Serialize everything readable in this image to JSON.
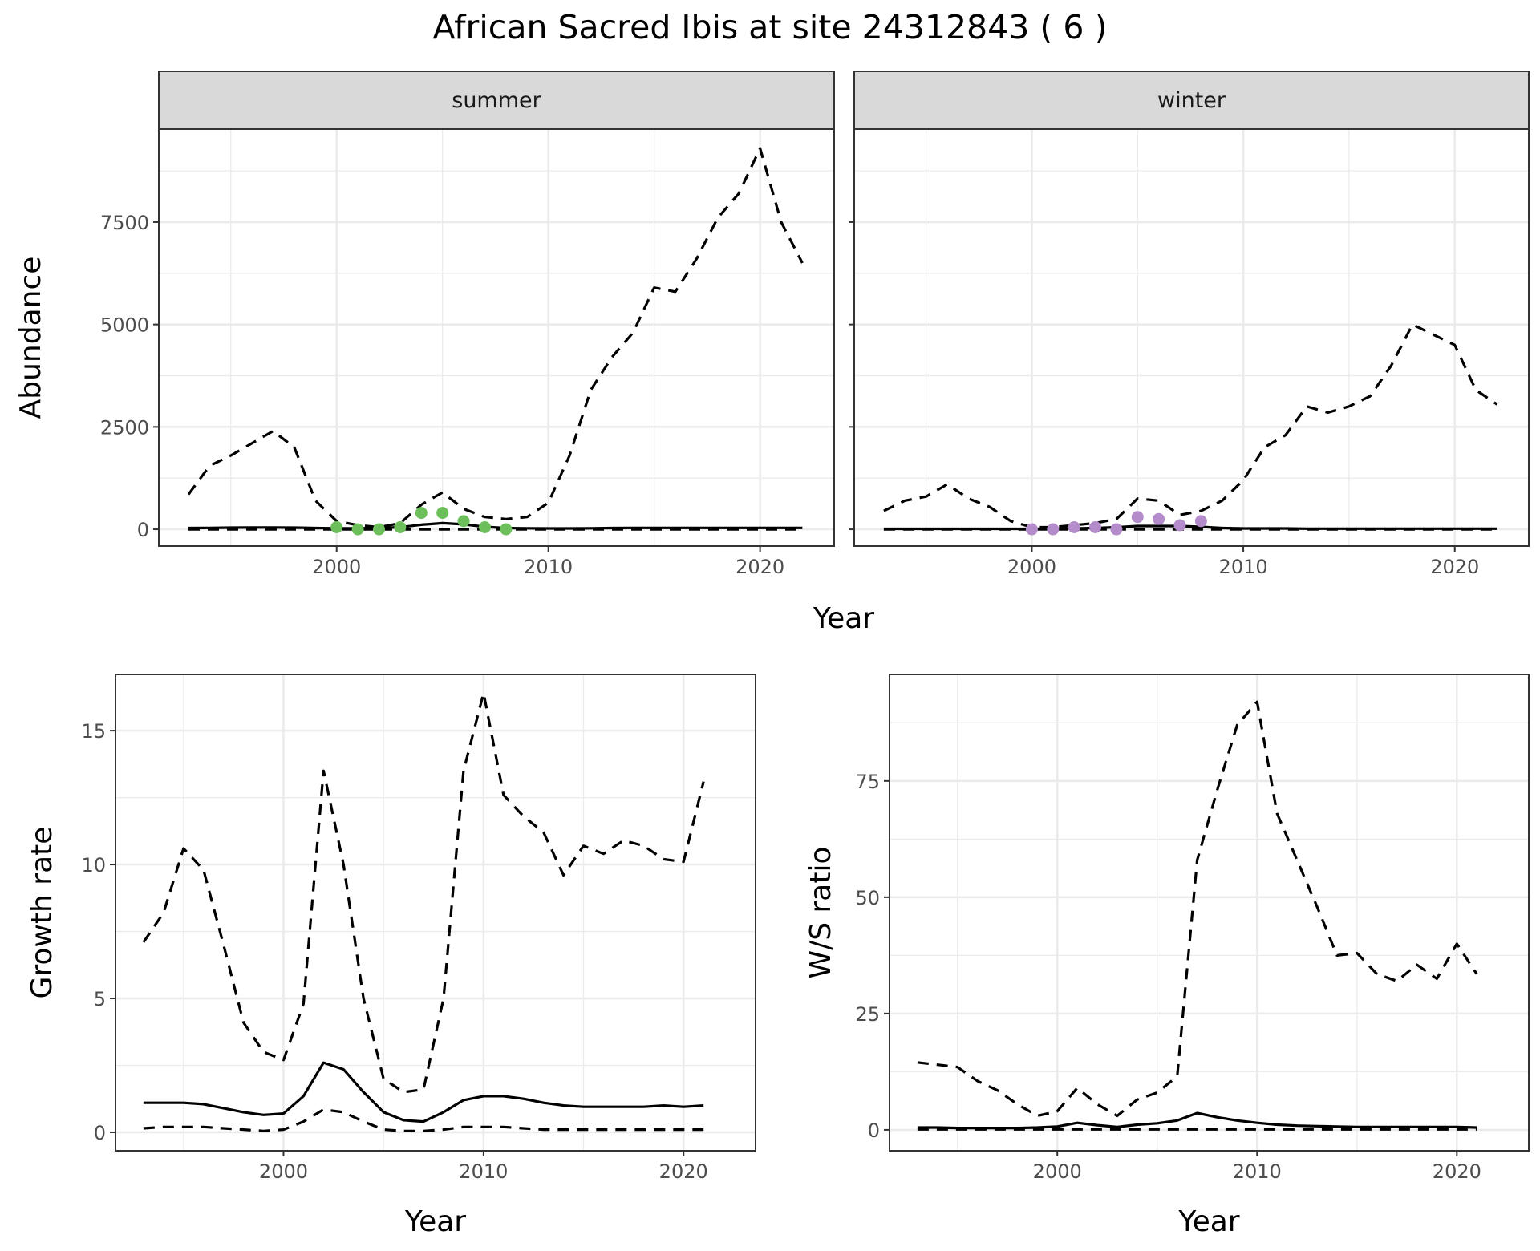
{
  "title": "African Sacred Ibis at site 24312843 ( 6 )",
  "colors": {
    "summer_points": "#6dbf5b",
    "winter_points": "#b48ccb",
    "strip_bg": "#d9d9d9",
    "grid": "#ebebeb",
    "line": "#000000"
  },
  "chart_data": [
    {
      "type": "line",
      "panel": "summer",
      "strip_label": "summer",
      "xlabel": "Year",
      "ylabel": "Abundance",
      "xlim": [
        1991.6,
        2023.5
      ],
      "ylim": [
        -410,
        9770
      ],
      "xticks": [
        2000,
        2010,
        2020
      ],
      "yticks": [
        0,
        2500,
        5000,
        7500
      ],
      "x": [
        1993,
        1994,
        1995,
        1996,
        1997,
        1998,
        1999,
        2000,
        2001,
        2002,
        2003,
        2004,
        2005,
        2006,
        2007,
        2008,
        2009,
        2010,
        2011,
        2012,
        2013,
        2014,
        2015,
        2016,
        2017,
        2018,
        2019,
        2020,
        2021,
        2022
      ],
      "series": [
        {
          "name": "upper",
          "style": "dashed",
          "values": [
            850,
            1550,
            1800,
            2100,
            2400,
            2000,
            700,
            200,
            100,
            50,
            150,
            600,
            900,
            500,
            300,
            250,
            300,
            650,
            1800,
            3400,
            4200,
            4800,
            5900,
            5800,
            6600,
            7600,
            8200,
            9300,
            7500,
            6500
          ]
        },
        {
          "name": "median",
          "style": "solid",
          "values": [
            30,
            35,
            40,
            45,
            45,
            40,
            30,
            25,
            25,
            30,
            50,
            110,
            150,
            120,
            60,
            30,
            25,
            20,
            20,
            25,
            30,
            35,
            35,
            35,
            35,
            35,
            35,
            35,
            35,
            35
          ]
        },
        {
          "name": "lower",
          "style": "dashed",
          "values": [
            0,
            0,
            0,
            0,
            0,
            0,
            0,
            0,
            0,
            0,
            0,
            0,
            0,
            0,
            0,
            0,
            0,
            0,
            0,
            0,
            0,
            0,
            0,
            0,
            0,
            0,
            0,
            0,
            0,
            0
          ]
        }
      ],
      "points": {
        "x": [
          2000,
          2001,
          2002,
          2003,
          2004,
          2005,
          2006,
          2007,
          2008
        ],
        "y": [
          50,
          0,
          0,
          50,
          400,
          400,
          200,
          50,
          0
        ]
      }
    },
    {
      "type": "line",
      "panel": "winter",
      "strip_label": "winter",
      "xlabel": "Year",
      "ylabel": "Abundance",
      "xlim": [
        1991.6,
        2023.5
      ],
      "ylim": [
        -410,
        9770
      ],
      "xticks": [
        2000,
        2010,
        2020
      ],
      "yticks": [
        0,
        2500,
        5000,
        7500
      ],
      "x": [
        1993,
        1994,
        1995,
        1996,
        1997,
        1998,
        1999,
        2000,
        2001,
        2002,
        2003,
        2004,
        2005,
        2006,
        2007,
        2008,
        2009,
        2010,
        2011,
        2012,
        2013,
        2014,
        2015,
        2016,
        2017,
        2018,
        2019,
        2020,
        2021,
        2022
      ],
      "series": [
        {
          "name": "upper",
          "style": "dashed",
          "values": [
            450,
            700,
            800,
            1100,
            750,
            550,
            200,
            50,
            50,
            100,
            150,
            250,
            750,
            700,
            350,
            450,
            700,
            1200,
            2000,
            2300,
            3000,
            2850,
            3000,
            3250,
            4000,
            5000,
            4750,
            4500,
            3400,
            3050
          ]
        },
        {
          "name": "median",
          "style": "solid",
          "values": [
            10,
            10,
            10,
            10,
            10,
            10,
            10,
            10,
            15,
            20,
            30,
            50,
            80,
            80,
            80,
            60,
            30,
            20,
            20,
            20,
            15,
            15,
            15,
            15,
            15,
            15,
            15,
            15,
            15,
            15
          ]
        },
        {
          "name": "lower",
          "style": "dashed",
          "values": [
            0,
            0,
            0,
            0,
            0,
            0,
            0,
            0,
            0,
            0,
            0,
            0,
            0,
            0,
            0,
            0,
            0,
            0,
            0,
            0,
            0,
            0,
            0,
            0,
            0,
            0,
            0,
            0,
            0,
            0
          ]
        }
      ],
      "points": {
        "x": [
          2000,
          2001,
          2002,
          2003,
          2004,
          2005,
          2006,
          2007,
          2008
        ],
        "y": [
          0,
          0,
          50,
          50,
          0,
          300,
          250,
          100,
          200
        ]
      }
    },
    {
      "type": "line",
      "panel": "growth",
      "xlabel": "Year",
      "ylabel": "Growth rate",
      "xlim": [
        1991.6,
        2023.6
      ],
      "ylim": [
        -0.69,
        17.1
      ],
      "xticks": [
        2000,
        2010,
        2020
      ],
      "yticks": [
        0,
        5,
        10,
        15
      ],
      "x": [
        1993,
        1994,
        1995,
        1996,
        1997,
        1998,
        1999,
        2000,
        2001,
        2002,
        2003,
        2004,
        2005,
        2006,
        2007,
        2008,
        2009,
        2010,
        2011,
        2012,
        2013,
        2014,
        2015,
        2016,
        2017,
        2018,
        2019,
        2020,
        2021
      ],
      "series": [
        {
          "name": "upper",
          "style": "dashed",
          "values": [
            7.1,
            8.2,
            10.6,
            9.8,
            7,
            4.1,
            3,
            2.7,
            4.8,
            13.5,
            10,
            5,
            2,
            1.5,
            1.6,
            5,
            13.5,
            16.4,
            12.6,
            11.8,
            11.2,
            9.6,
            10.7,
            10.4,
            10.9,
            10.7,
            10.2,
            10.1,
            13.1
          ]
        },
        {
          "name": "median",
          "style": "solid",
          "values": [
            1.1,
            1.1,
            1.1,
            1.05,
            0.9,
            0.75,
            0.65,
            0.7,
            1.35,
            2.6,
            2.35,
            1.5,
            0.75,
            0.45,
            0.4,
            0.75,
            1.2,
            1.35,
            1.35,
            1.25,
            1.1,
            1.0,
            0.95,
            0.95,
            0.95,
            0.95,
            1.0,
            0.95,
            1.0
          ]
        },
        {
          "name": "lower",
          "style": "dashed",
          "values": [
            0.15,
            0.2,
            0.2,
            0.2,
            0.15,
            0.1,
            0.05,
            0.1,
            0.4,
            0.85,
            0.75,
            0.4,
            0.1,
            0.05,
            0.05,
            0.1,
            0.2,
            0.2,
            0.2,
            0.15,
            0.1,
            0.1,
            0.1,
            0.1,
            0.1,
            0.1,
            0.1,
            0.1,
            0.1
          ]
        }
      ]
    },
    {
      "type": "line",
      "panel": "ws",
      "xlabel": "Year",
      "ylabel": "W/S ratio",
      "xlim": [
        1991.6,
        2023.6
      ],
      "ylim": [
        -4.5,
        97.9
      ],
      "xticks": [
        2000,
        2010,
        2020
      ],
      "yticks": [
        0,
        25,
        50,
        75
      ],
      "x": [
        1993,
        1994,
        1995,
        1996,
        1997,
        1998,
        1999,
        2000,
        2001,
        2002,
        2003,
        2004,
        2005,
        2006,
        2007,
        2008,
        2009,
        2010,
        2011,
        2012,
        2013,
        2014,
        2015,
        2016,
        2017,
        2018,
        2019,
        2020,
        2021
      ],
      "series": [
        {
          "name": "upper",
          "style": "dashed",
          "values": [
            14.5,
            14,
            13.5,
            10.5,
            8.5,
            5.5,
            3,
            4,
            9,
            5.5,
            3,
            6.5,
            8,
            11.5,
            58,
            73,
            87,
            92,
            68,
            58,
            48,
            37.5,
            38,
            33.5,
            32,
            35.5,
            32.5,
            40,
            33.5
          ]
        },
        {
          "name": "median",
          "style": "solid",
          "values": [
            0.5,
            0.5,
            0.4,
            0.4,
            0.4,
            0.4,
            0.5,
            0.7,
            1.5,
            1,
            0.6,
            1.1,
            1.4,
            2,
            3.6,
            2.7,
            2,
            1.5,
            1.1,
            0.9,
            0.8,
            0.7,
            0.6,
            0.6,
            0.6,
            0.6,
            0.6,
            0.6,
            0.5
          ]
        },
        {
          "name": "lower",
          "style": "dashed",
          "values": [
            0.1,
            0.1,
            0.1,
            0.1,
            0.1,
            0.1,
            0.1,
            0.1,
            0.1,
            0.1,
            0.1,
            0.1,
            0.1,
            0.1,
            0.1,
            0.1,
            0.1,
            0.1,
            0.1,
            0.1,
            0.1,
            0.1,
            0.1,
            0.1,
            0.1,
            0.1,
            0.1,
            0.1,
            0.1
          ]
        }
      ]
    }
  ],
  "shared_xlabel_top": "Year"
}
